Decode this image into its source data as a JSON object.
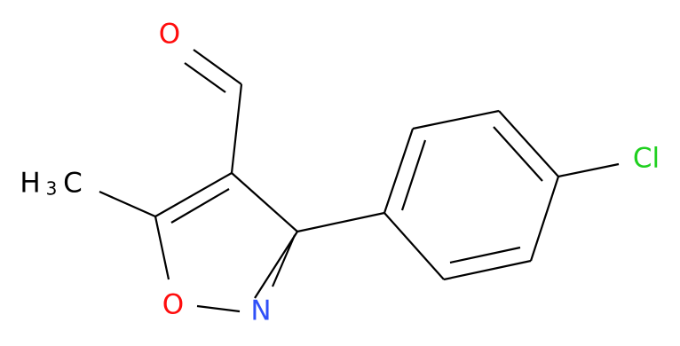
{
  "atoms": {
    "aldehyde_oxygen": "O",
    "ring_oxygen": "O",
    "ring_nitrogen": "N",
    "chlorine": "Cl"
  },
  "methyl": {
    "h": "H",
    "subscript": "3",
    "c": "C"
  }
}
